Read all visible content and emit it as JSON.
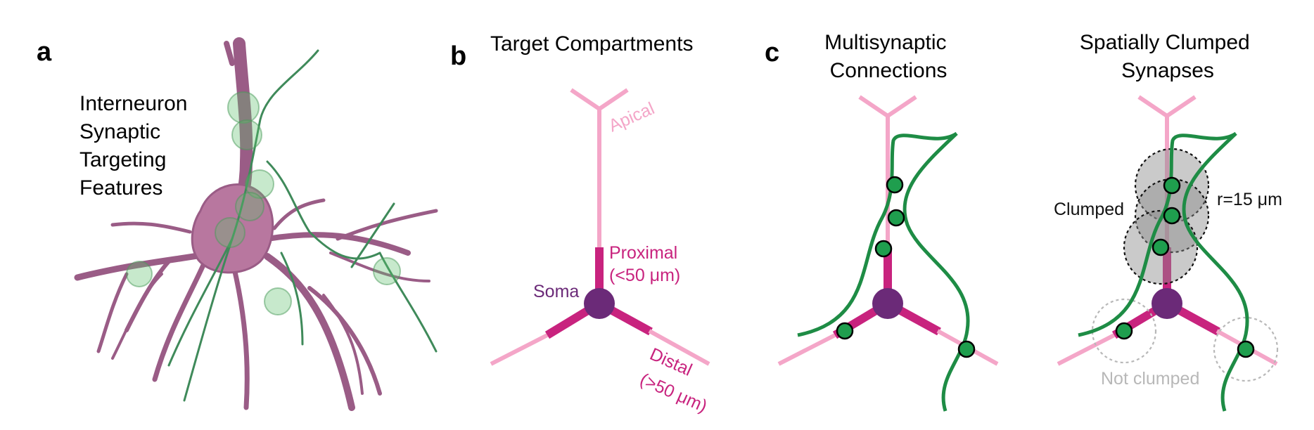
{
  "panels": {
    "a": {
      "letter": "a",
      "heading": [
        "Interneuron",
        "Synaptic",
        "Targeting",
        "Features"
      ]
    },
    "b": {
      "letter": "b",
      "title": "Target Compartments",
      "labels": {
        "apical": "Apical",
        "proximal": "Proximal",
        "proximal_range": "(<50 μm)",
        "soma": "Soma",
        "distal": "Distal",
        "distal_range": "(>50 μm)"
      }
    },
    "c": {
      "letter": "c",
      "multisynaptic_title": [
        "Multisynaptic",
        "Connections"
      ],
      "clumped_title": [
        "Spatially Clumped",
        "Synapses"
      ],
      "labels": {
        "clumped": "Clumped",
        "radius": "r=15 μm",
        "not_clumped": "Not clumped"
      }
    }
  },
  "colors": {
    "dendrite_light": "#f4a6c8",
    "dendrite_dark": "#c8237e",
    "soma": "#6b2a78",
    "axon": "#1e8c45",
    "synapse_fill": "#1f9e4e",
    "neuron_render": "#b8779f",
    "clump_fill": "#8a8a8a",
    "not_clumped": "#b8b8b8"
  }
}
